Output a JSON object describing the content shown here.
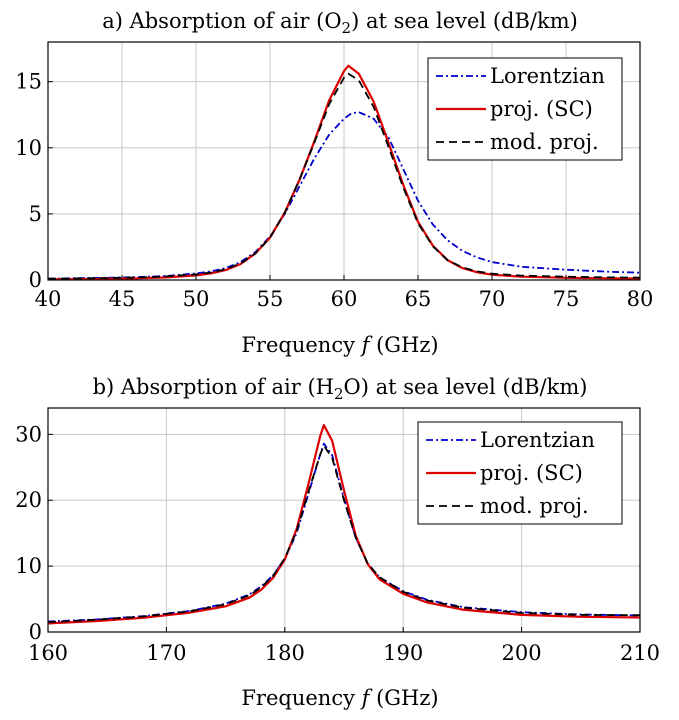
{
  "chart_data": [
    {
      "type": "line",
      "title_prefix": "a) Absorption of air (O",
      "title_sub": "2",
      "title_suffix": ") at sea level  (dB/km)",
      "xlabel_prefix": "Frequency ",
      "xlabel_var": "f",
      "xlabel_suffix": " (GHz)",
      "ylabel": "",
      "xlim": [
        40,
        80
      ],
      "ylim": [
        0,
        18
      ],
      "xticks": [
        40,
        45,
        50,
        55,
        60,
        65,
        70,
        75,
        80
      ],
      "yticks": [
        0,
        5,
        10,
        15
      ],
      "grid": true,
      "legend_position": "top-right",
      "series": [
        {
          "name": "Lorentzian",
          "color": "#0000cc",
          "dash": "dashdot",
          "points": [
            [
              40,
              0.1
            ],
            [
              42,
              0.14
            ],
            [
              44,
              0.17
            ],
            [
              46,
              0.22
            ],
            [
              48,
              0.3
            ],
            [
              50,
              0.5
            ],
            [
              51,
              0.65
            ],
            [
              52,
              0.9
            ],
            [
              53,
              1.35
            ],
            [
              54,
              2.1
            ],
            [
              55,
              3.3
            ],
            [
              56,
              5.0
            ],
            [
              57,
              7.1
            ],
            [
              58,
              9.2
            ],
            [
              59,
              11.0
            ],
            [
              60,
              12.2
            ],
            [
              60.5,
              12.6
            ],
            [
              61,
              12.7
            ],
            [
              62,
              12.2
            ],
            [
              63,
              10.8
            ],
            [
              64,
              8.4
            ],
            [
              65,
              6.0
            ],
            [
              66,
              4.2
            ],
            [
              67,
              3.0
            ],
            [
              68,
              2.2
            ],
            [
              69,
              1.7
            ],
            [
              70,
              1.35
            ],
            [
              72,
              1.0
            ],
            [
              75,
              0.78
            ],
            [
              78,
              0.62
            ],
            [
              80,
              0.55
            ]
          ]
        },
        {
          "name": "proj. (SC)",
          "color": "#dd0000",
          "dash": "solid",
          "points": [
            [
              40,
              0.05
            ],
            [
              42,
              0.07
            ],
            [
              44,
              0.09
            ],
            [
              46,
              0.13
            ],
            [
              48,
              0.2
            ],
            [
              50,
              0.35
            ],
            [
              51,
              0.5
            ],
            [
              52,
              0.75
            ],
            [
              53,
              1.2
            ],
            [
              54,
              2.0
            ],
            [
              55,
              3.2
            ],
            [
              56,
              5.1
            ],
            [
              57,
              7.6
            ],
            [
              58,
              10.5
            ],
            [
              59,
              13.6
            ],
            [
              60,
              15.8
            ],
            [
              60.3,
              16.2
            ],
            [
              61,
              15.6
            ],
            [
              62,
              13.5
            ],
            [
              63,
              10.4
            ],
            [
              64,
              7.2
            ],
            [
              65,
              4.4
            ],
            [
              66,
              2.6
            ],
            [
              67,
              1.5
            ],
            [
              68,
              0.9
            ],
            [
              69,
              0.58
            ],
            [
              70,
              0.4
            ],
            [
              72,
              0.25
            ],
            [
              75,
              0.17
            ],
            [
              78,
              0.13
            ],
            [
              80,
              0.11
            ]
          ]
        },
        {
          "name": "mod. proj.",
          "color": "#000000",
          "dash": "dashed",
          "points": [
            [
              40,
              0.1
            ],
            [
              42,
              0.12
            ],
            [
              44,
              0.15
            ],
            [
              46,
              0.19
            ],
            [
              48,
              0.27
            ],
            [
              50,
              0.42
            ],
            [
              51,
              0.57
            ],
            [
              52,
              0.82
            ],
            [
              53,
              1.25
            ],
            [
              54,
              2.0
            ],
            [
              55,
              3.2
            ],
            [
              56,
              5.1
            ],
            [
              57,
              7.6
            ],
            [
              58,
              10.4
            ],
            [
              59,
              13.3
            ],
            [
              60,
              15.3
            ],
            [
              60.3,
              15.6
            ],
            [
              61,
              15.1
            ],
            [
              62,
              13.1
            ],
            [
              63,
              10.1
            ],
            [
              64,
              7.0
            ],
            [
              65,
              4.3
            ],
            [
              66,
              2.55
            ],
            [
              67,
              1.5
            ],
            [
              68,
              0.95
            ],
            [
              69,
              0.65
            ],
            [
              70,
              0.48
            ],
            [
              72,
              0.33
            ],
            [
              75,
              0.25
            ],
            [
              78,
              0.2
            ],
            [
              80,
              0.18
            ]
          ]
        }
      ]
    },
    {
      "type": "line",
      "title_prefix": "b) Absorption of air (H",
      "title_sub": "2",
      "title_suffix": "O) at sea level  (dB/km)",
      "xlabel_prefix": "Frequency ",
      "xlabel_var": "f",
      "xlabel_suffix": " (GHz)",
      "ylabel": "",
      "xlim": [
        160,
        210
      ],
      "ylim": [
        0,
        34
      ],
      "xticks": [
        160,
        170,
        180,
        190,
        200,
        210
      ],
      "yticks": [
        0,
        10,
        20,
        30
      ],
      "grid": true,
      "legend_position": "top-right",
      "series": [
        {
          "name": "Lorentzian",
          "color": "#0000cc",
          "dash": "dashdot",
          "points": [
            [
              160,
              1.6
            ],
            [
              164,
              1.9
            ],
            [
              168,
              2.4
            ],
            [
              172,
              3.2
            ],
            [
              175,
              4.3
            ],
            [
              177,
              5.7
            ],
            [
              178,
              6.9
            ],
            [
              179,
              8.6
            ],
            [
              180,
              11.1
            ],
            [
              181,
              15.0
            ],
            [
              182,
              21.0
            ],
            [
              183,
              27.0
            ],
            [
              183.3,
              28.6
            ],
            [
              184,
              26.8
            ],
            [
              185,
              20.2
            ],
            [
              186,
              14.3
            ],
            [
              187,
              10.4
            ],
            [
              188,
              8.3
            ],
            [
              190,
              6.2
            ],
            [
              192,
              4.9
            ],
            [
              195,
              3.8
            ],
            [
              200,
              3.0
            ],
            [
              205,
              2.65
            ],
            [
              210,
              2.5
            ]
          ]
        },
        {
          "name": "proj. (SC)",
          "color": "#dd0000",
          "dash": "solid",
          "points": [
            [
              160,
              1.3
            ],
            [
              164,
              1.65
            ],
            [
              168,
              2.15
            ],
            [
              172,
              2.95
            ],
            [
              175,
              3.9
            ],
            [
              177,
              5.2
            ],
            [
              178,
              6.4
            ],
            [
              179,
              8.2
            ],
            [
              180,
              11.0
            ],
            [
              181,
              15.6
            ],
            [
              182,
              22.5
            ],
            [
              183,
              29.8
            ],
            [
              183.3,
              31.4
            ],
            [
              184,
              29.0
            ],
            [
              185,
              21.5
            ],
            [
              186,
              14.6
            ],
            [
              187,
              10.3
            ],
            [
              188,
              8.0
            ],
            [
              190,
              5.8
            ],
            [
              192,
              4.5
            ],
            [
              195,
              3.4
            ],
            [
              200,
              2.6
            ],
            [
              205,
              2.3
            ],
            [
              210,
              2.2
            ]
          ]
        },
        {
          "name": "mod. proj.",
          "color": "#000000",
          "dash": "dashed",
          "points": [
            [
              160,
              1.5
            ],
            [
              164,
              1.85
            ],
            [
              168,
              2.35
            ],
            [
              172,
              3.15
            ],
            [
              175,
              4.2
            ],
            [
              177,
              5.55
            ],
            [
              178,
              6.75
            ],
            [
              179,
              8.5
            ],
            [
              180,
              11.2
            ],
            [
              181,
              15.3
            ],
            [
              182,
              21.3
            ],
            [
              183,
              27.0
            ],
            [
              183.3,
              28.3
            ],
            [
              184,
              26.4
            ],
            [
              185,
              20.0
            ],
            [
              186,
              14.3
            ],
            [
              187,
              10.4
            ],
            [
              188,
              8.3
            ],
            [
              190,
              6.1
            ],
            [
              192,
              4.8
            ],
            [
              195,
              3.7
            ],
            [
              200,
              2.9
            ],
            [
              205,
              2.6
            ],
            [
              210,
              2.55
            ]
          ]
        }
      ]
    }
  ]
}
